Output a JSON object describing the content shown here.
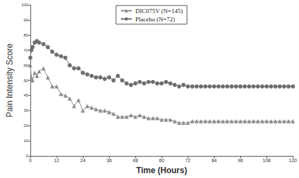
{
  "chart_data": {
    "type": "line",
    "x_label": "Time (Hours)",
    "y_label": "Pain Intensity Score",
    "x": [
      0,
      0.5,
      1,
      2,
      3,
      4,
      6,
      8,
      10,
      12,
      14,
      16,
      18,
      20,
      22,
      24,
      26,
      28,
      30,
      32,
      34,
      36,
      38,
      40,
      42,
      44,
      46,
      48,
      50,
      52,
      54,
      56,
      58,
      60,
      62,
      64,
      66,
      68,
      70,
      72,
      74,
      76,
      78,
      80,
      82,
      84,
      86,
      88,
      90,
      92,
      94,
      96,
      98,
      100,
      102,
      104,
      106,
      108,
      110,
      112,
      114,
      116,
      118,
      120
    ],
    "series": [
      {
        "name": "DIC075V (N=145)",
        "color": "#8c8c8c",
        "marker": "triangle",
        "values": [
          60,
          52,
          50,
          55,
          53,
          56,
          58,
          52,
          46,
          46,
          41,
          40,
          38,
          33,
          37,
          30,
          33,
          32,
          31,
          30,
          30,
          29,
          28,
          26,
          26,
          26,
          27,
          26,
          27,
          26,
          25,
          25,
          25,
          24,
          24,
          24,
          23,
          22,
          22,
          22,
          23,
          23,
          23,
          23,
          23,
          23,
          23,
          23,
          23,
          23,
          23,
          23,
          23,
          23,
          23,
          23,
          23,
          23,
          23,
          23,
          23,
          23,
          23,
          23
        ]
      },
      {
        "name": "Placebo (N=72)",
        "color": "#6e6e6e",
        "marker": "circle",
        "values": [
          65,
          70,
          72,
          75,
          76,
          75,
          74,
          72,
          69,
          67,
          66,
          65,
          60,
          58,
          58,
          55,
          54,
          53,
          52,
          52,
          51,
          52,
          50,
          53,
          50,
          48,
          47,
          48,
          49,
          48,
          49,
          49,
          48,
          48,
          49,
          48,
          47,
          46,
          47,
          46,
          46,
          46,
          46,
          46,
          46,
          46,
          46,
          46,
          46,
          46,
          46,
          46,
          46,
          46,
          46,
          46,
          46,
          46,
          46,
          46,
          46,
          46,
          46,
          46
        ]
      }
    ],
    "xlim": [
      0,
      120
    ],
    "xticks": [
      0,
      12,
      24,
      36,
      48,
      60,
      72,
      84,
      96,
      108,
      120
    ],
    "ylim": [
      0,
      100
    ],
    "yticks": [
      0,
      10,
      20,
      30,
      40,
      50,
      60,
      70,
      80,
      90,
      100
    ],
    "grid": false,
    "legend": "top"
  }
}
